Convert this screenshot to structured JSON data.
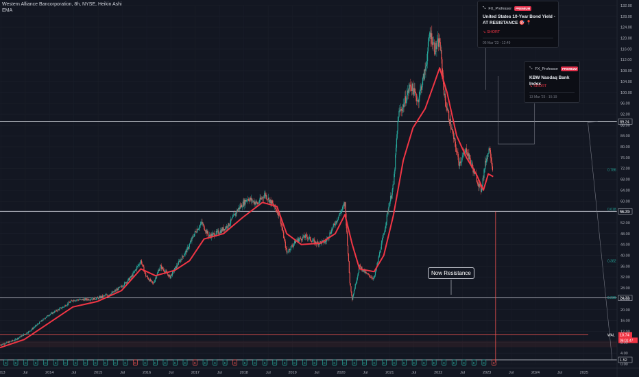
{
  "header": {
    "title": "Western Alliance Bancorporation, 8h, NYSE, Heikin Ashi",
    "indicator": "EMA"
  },
  "ideas": [
    {
      "author": "FX_Professor",
      "badge": "PREMIUM",
      "title": "United States 10-Year Bond Yield - AT RESISTANCE 🎯 📍",
      "signal": "SHORT",
      "date": "06 Mar '23 - 12:49"
    },
    {
      "author": "FX_Professor",
      "badge": "PREMIUM",
      "title": "KBW Nasdaq Bank Index",
      "signal": "SHORT",
      "date": "13 Mar '23 - 15:19"
    }
  ],
  "annotation": "Now Resistance",
  "colors": {
    "background": "#131722",
    "candle_up": "#26a69a",
    "candle_down": "#ef5350",
    "ema": "#f23645",
    "level_line": "#d1d4dc",
    "fib": "#26a69a"
  },
  "chart_data": {
    "type": "candlestick",
    "title": "Western Alliance Bancorporation, 8h, NYSE, Heikin Ashi",
    "indicator": "EMA",
    "x_range": [
      2013.0,
      2025.7
    ],
    "ylim": [
      0,
      132
    ],
    "x_ticks": [
      "2013",
      "Jul",
      "2014",
      "Jul",
      "2015",
      "Jul",
      "2016",
      "Jul",
      "2017",
      "Jul",
      "2018",
      "Jul",
      "2019",
      "Jul",
      "2020",
      "Jul",
      "2021",
      "Jul",
      "2022",
      "Jul",
      "2023",
      "Jul",
      "2024",
      "Jul",
      "2025"
    ],
    "y_ticks": [
      "132.00",
      "128.00",
      "124.00",
      "120.00",
      "116.00",
      "112.00",
      "108.00",
      "104.00",
      "100.00",
      "96.00",
      "92.00",
      "88.00",
      "84.00",
      "80.00",
      "76.00",
      "72.00",
      "68.00",
      "64.00",
      "60.00",
      "56.00",
      "52.00",
      "48.00",
      "44.00",
      "40.00",
      "36.00",
      "32.00",
      "28.00",
      "24.00",
      "20.00",
      "16.00",
      "12.00",
      "8.00",
      "4.00",
      "0.00"
    ],
    "price_path": [
      [
        2013.0,
        7.0
      ],
      [
        2013.3,
        8.8
      ],
      [
        2013.6,
        12.0
      ],
      [
        2013.8,
        15.0
      ],
      [
        2014.0,
        18.0
      ],
      [
        2014.3,
        21.0
      ],
      [
        2014.5,
        23.5
      ],
      [
        2014.8,
        23.8
      ],
      [
        2015.0,
        24.2
      ],
      [
        2015.3,
        26.0
      ],
      [
        2015.5,
        28.5
      ],
      [
        2015.7,
        32.0
      ],
      [
        2015.9,
        38.0
      ],
      [
        2016.0,
        32.5
      ],
      [
        2016.15,
        29.5
      ],
      [
        2016.3,
        36.0
      ],
      [
        2016.5,
        32.0
      ],
      [
        2016.7,
        38.0
      ],
      [
        2016.85,
        42.0
      ],
      [
        2017.0,
        48.0
      ],
      [
        2017.15,
        52.0
      ],
      [
        2017.3,
        47.0
      ],
      [
        2017.5,
        48.5
      ],
      [
        2017.7,
        51.0
      ],
      [
        2017.9,
        57.0
      ],
      [
        2018.1,
        61.0
      ],
      [
        2018.3,
        59.0
      ],
      [
        2018.45,
        62.5
      ],
      [
        2018.6,
        59.0
      ],
      [
        2018.75,
        55.0
      ],
      [
        2018.9,
        41.0
      ],
      [
        2019.1,
        45.5
      ],
      [
        2019.3,
        47.0
      ],
      [
        2019.5,
        44.5
      ],
      [
        2019.7,
        45.0
      ],
      [
        2019.9,
        52.0
      ],
      [
        2020.1,
        59.0
      ],
      [
        2020.2,
        30.0
      ],
      [
        2020.25,
        24.0
      ],
      [
        2020.4,
        36.0
      ],
      [
        2020.55,
        33.0
      ],
      [
        2020.7,
        31.5
      ],
      [
        2020.9,
        48.0
      ],
      [
        2021.0,
        58.0
      ],
      [
        2021.1,
        66.0
      ],
      [
        2021.2,
        92.0
      ],
      [
        2021.3,
        95.0
      ],
      [
        2021.45,
        103.0
      ],
      [
        2021.6,
        97.0
      ],
      [
        2021.75,
        108.0
      ],
      [
        2021.85,
        122.0
      ],
      [
        2021.95,
        116.0
      ],
      [
        2022.05,
        119.0
      ],
      [
        2022.15,
        98.0
      ],
      [
        2022.3,
        86.0
      ],
      [
        2022.45,
        74.0
      ],
      [
        2022.6,
        79.0
      ],
      [
        2022.75,
        71.0
      ],
      [
        2022.9,
        64.0
      ],
      [
        2023.0,
        75.0
      ],
      [
        2023.08,
        80.0
      ],
      [
        2023.15,
        70.0
      ]
    ],
    "ema_path": [
      [
        2013.0,
        6.0
      ],
      [
        2013.5,
        9.0
      ],
      [
        2014.0,
        15.0
      ],
      [
        2014.5,
        21.0
      ],
      [
        2015.0,
        23.0
      ],
      [
        2015.5,
        27.0
      ],
      [
        2015.9,
        35.0
      ],
      [
        2016.2,
        32.5
      ],
      [
        2016.6,
        34.5
      ],
      [
        2016.9,
        38.0
      ],
      [
        2017.2,
        46.0
      ],
      [
        2017.6,
        48.0
      ],
      [
        2018.0,
        54.0
      ],
      [
        2018.4,
        59.5
      ],
      [
        2018.7,
        58.0
      ],
      [
        2018.9,
        48.0
      ],
      [
        2019.2,
        44.0
      ],
      [
        2019.6,
        44.5
      ],
      [
        2019.9,
        48.0
      ],
      [
        2020.1,
        55.0
      ],
      [
        2020.25,
        44.0
      ],
      [
        2020.4,
        35.0
      ],
      [
        2020.7,
        34.0
      ],
      [
        2020.9,
        40.0
      ],
      [
        2021.1,
        55.0
      ],
      [
        2021.3,
        75.0
      ],
      [
        2021.5,
        87.0
      ],
      [
        2021.75,
        94.0
      ],
      [
        2021.95,
        104.0
      ],
      [
        2022.05,
        109.0
      ],
      [
        2022.2,
        100.0
      ],
      [
        2022.4,
        84.0
      ],
      [
        2022.6,
        76.0
      ],
      [
        2022.8,
        70.0
      ],
      [
        2022.95,
        64.0
      ],
      [
        2023.05,
        70.0
      ],
      [
        2023.15,
        69.0
      ]
    ],
    "horizontal_levels": [
      89.24,
      56.2,
      24.33,
      10.74,
      1.52
    ],
    "level_labels": [
      "89.24",
      "56.20",
      "24.33",
      "10.74",
      "1.52"
    ],
    "fib_levels": [
      {
        "label": "0.786",
        "value": 71.5
      },
      {
        "label": "0.618",
        "value": 57.0
      },
      {
        "label": "0.382",
        "value": 38.0
      },
      {
        "label": "0.236",
        "value": 24.5
      },
      {
        "label": "WAL",
        "value": 10.74
      }
    ],
    "current_price": "10.74",
    "countdown": "06:01:47",
    "last_date_marker": 2023.2
  }
}
